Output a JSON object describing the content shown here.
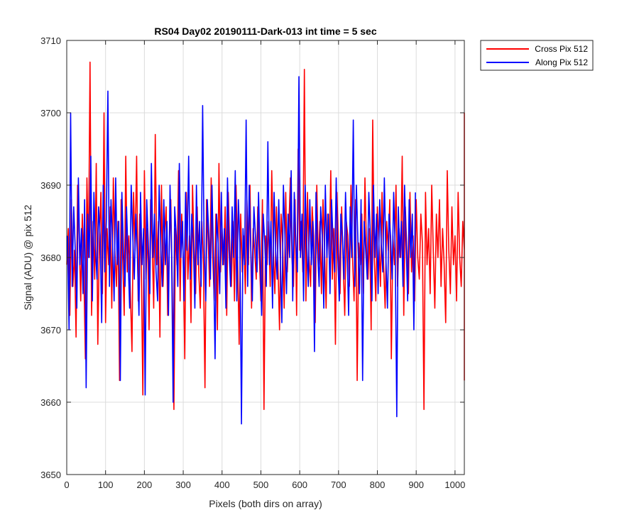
{
  "chart_data": {
    "type": "line",
    "title": "RS04 Day02 20190111-Dark-013 int time = 5 sec",
    "xlabel": "Pixels (both dirs on array)",
    "ylabel": "Signal (ADU) @ pix 512",
    "xlim": [
      0,
      1024
    ],
    "ylim": [
      3650,
      3710
    ],
    "xticks": [
      0,
      100,
      200,
      300,
      400,
      500,
      600,
      700,
      800,
      900,
      1000
    ],
    "yticks": [
      3650,
      3660,
      3670,
      3680,
      3690,
      3700,
      3710
    ],
    "grid": true,
    "legend_position": "outside-top-right",
    "x_step": 4,
    "series": [
      {
        "name": "Cross Pix 512",
        "color": "#ff0000",
        "values": [
          3679,
          3684,
          3672,
          3688,
          3676,
          3681,
          3669,
          3690,
          3683,
          3674,
          3686,
          3678,
          3666,
          3691,
          3680,
          3707,
          3672,
          3685,
          3677,
          3693,
          3668,
          3682,
          3689,
          3675,
          3700,
          3671,
          3684,
          3679,
          3687,
          3673,
          3691,
          3681,
          3676,
          3685,
          3663,
          3688,
          3680,
          3672,
          3694,
          3678,
          3683,
          3675,
          3667,
          3689,
          3681,
          3694,
          3674,
          3686,
          3679,
          3661,
          3692,
          3677,
          3684,
          3670,
          3688,
          3682,
          3673,
          3697,
          3679,
          3685,
          3669,
          3690,
          3676,
          3683,
          3687,
          3672,
          3681,
          3688,
          3675,
          3659,
          3684,
          3679,
          3692,
          3674,
          3686,
          3680,
          3666,
          3689,
          3677,
          3683,
          3671,
          3690,
          3681,
          3675,
          3687,
          3678,
          3673,
          3685,
          3679,
          3662,
          3688,
          3683,
          3676,
          3691,
          3680,
          3674,
          3686,
          3670,
          3693,
          3678,
          3684,
          3679,
          3687,
          3672,
          3689,
          3681,
          3676,
          3685,
          3674,
          3690,
          3680,
          3668,
          3686,
          3678,
          3683,
          3675,
          3688,
          3679,
          3690,
          3673,
          3684,
          3681,
          3677,
          3687,
          3680,
          3674,
          3688,
          3659,
          3683,
          3679,
          3685,
          3676,
          3692,
          3681,
          3675,
          3687,
          3679,
          3670,
          3686,
          3682,
          3673,
          3689,
          3678,
          3684,
          3691,
          3680,
          3676,
          3688,
          3672,
          3695,
          3681,
          3685,
          3678,
          3706,
          3674,
          3689,
          3680,
          3676,
          3687,
          3683,
          3671,
          3690,
          3679,
          3685,
          3675,
          3688,
          3681,
          3673,
          3686,
          3680,
          3692,
          3677,
          3684,
          3668,
          3689,
          3681,
          3675,
          3687,
          3679,
          3672,
          3685,
          3683,
          3676,
          3690,
          3680,
          3674,
          3688,
          3663,
          3682,
          3679,
          3686,
          3675,
          3691,
          3681,
          3677,
          3684,
          3670,
          3699,
          3680,
          3674,
          3687,
          3682,
          3676,
          3689,
          3679,
          3673,
          3685,
          3681,
          3688,
          3666,
          3683,
          3679,
          3690,
          3676,
          3684,
          3680,
          3694,
          3672,
          3687,
          3681,
          3675,
          3689,
          3678,
          3683,
          3674,
          3688,
          3680,
          3677,
          3686,
          3682,
          3659,
          3689,
          3679,
          3684,
          3675,
          3690,
          3681,
          3673,
          3686,
          3680,
          3688,
          3676,
          3684,
          3679,
          3671,
          3692,
          3681,
          3675,
          3687,
          3679,
          3683,
          3674,
          3689,
          3680,
          3676,
          3685,
          3681,
          3700,
          3673,
          3688,
          3679,
          3684,
          3675,
          3690,
          3681,
          3677,
          3686,
          3663
        ]
      },
      {
        "name": "Along Pix 512",
        "color": "#0000ff",
        "values": [
          3683,
          3670,
          3700,
          3676,
          3687,
          3681,
          3673,
          3691,
          3679,
          3684,
          3675,
          3688,
          3662,
          3686,
          3680,
          3694,
          3674,
          3689,
          3681,
          3677,
          3687,
          3683,
          3671,
          3690,
          3678,
          3685,
          3703,
          3676,
          3688,
          3682,
          3674,
          3691,
          3679,
          3685,
          3663,
          3689,
          3681,
          3676,
          3687,
          3680,
          3673,
          3690,
          3683,
          3677,
          3686,
          3680,
          3672,
          3689,
          3679,
          3684,
          3661,
          3688,
          3682,
          3675,
          3693,
          3680,
          3686,
          3678,
          3674,
          3690,
          3682,
          3676,
          3688,
          3679,
          3685,
          3672,
          3690,
          3681,
          3660,
          3687,
          3683,
          3676,
          3693,
          3680,
          3685,
          3674,
          3689,
          3681,
          3694,
          3677,
          3686,
          3682,
          3673,
          3690,
          3679,
          3685,
          3676,
          3701,
          3681,
          3674,
          3688,
          3683,
          3677,
          3690,
          3680,
          3666,
          3686,
          3682,
          3675,
          3689,
          3679,
          3684,
          3673,
          3691,
          3681,
          3676,
          3687,
          3680,
          3692,
          3674,
          3688,
          3682,
          3657,
          3684,
          3679,
          3699,
          3676,
          3690,
          3681,
          3674,
          3687,
          3683,
          3678,
          3689,
          3680,
          3672,
          3686,
          3682,
          3676,
          3696,
          3679,
          3685,
          3673,
          3689,
          3681,
          3677,
          3688,
          3680,
          3671,
          3690,
          3683,
          3675,
          3686,
          3680,
          3692,
          3674,
          3689,
          3682,
          3678,
          3705,
          3680,
          3686,
          3674,
          3690,
          3682,
          3676,
          3688,
          3679,
          3685,
          3667,
          3689,
          3681,
          3676,
          3687,
          3683,
          3673,
          3690,
          3680,
          3686,
          3675,
          3688,
          3682,
          3678,
          3691,
          3680,
          3674,
          3686,
          3683,
          3677,
          3689,
          3681,
          3672,
          3687,
          3680,
          3699,
          3676,
          3690,
          3682,
          3675,
          3688,
          3663,
          3685,
          3681,
          3677,
          3689,
          3683,
          3674,
          3690,
          3680,
          3686,
          3675,
          3688,
          3682,
          3678,
          3691,
          3680,
          3673,
          3686,
          3683,
          3677,
          3689,
          3681,
          3658,
          3687,
          3680,
          3685,
          3676,
          3690,
          3682,
          3674,
          3688,
          3680,
          3686,
          3670,
          3689
        ]
      }
    ]
  }
}
